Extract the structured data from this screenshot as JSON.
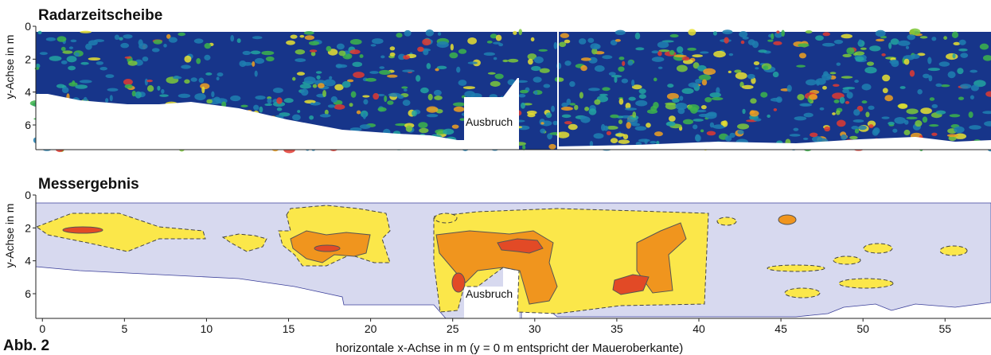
{
  "figure_label": "Abb. 2",
  "annotation": "Ausbruch",
  "x_axis": {
    "label": "horizontale x-Achse in m (y = 0 m entspricht der Maueroberkante)",
    "xlim": [
      -0.4,
      57.8
    ],
    "xticks": [
      0,
      5,
      10,
      15,
      20,
      25,
      30,
      35,
      40,
      45,
      50,
      55
    ]
  },
  "panels": [
    {
      "title": "Radarzeitscheibe",
      "ylabel": "y-Achse in m",
      "ylim": [
        0,
        7.5
      ],
      "yticks": [
        0,
        2,
        4,
        6
      ]
    },
    {
      "title": "Messergebnis",
      "ylabel": "y-Achse in m",
      "ylim": [
        0,
        7.5
      ],
      "yticks": [
        0,
        2,
        4,
        6
      ]
    }
  ]
}
